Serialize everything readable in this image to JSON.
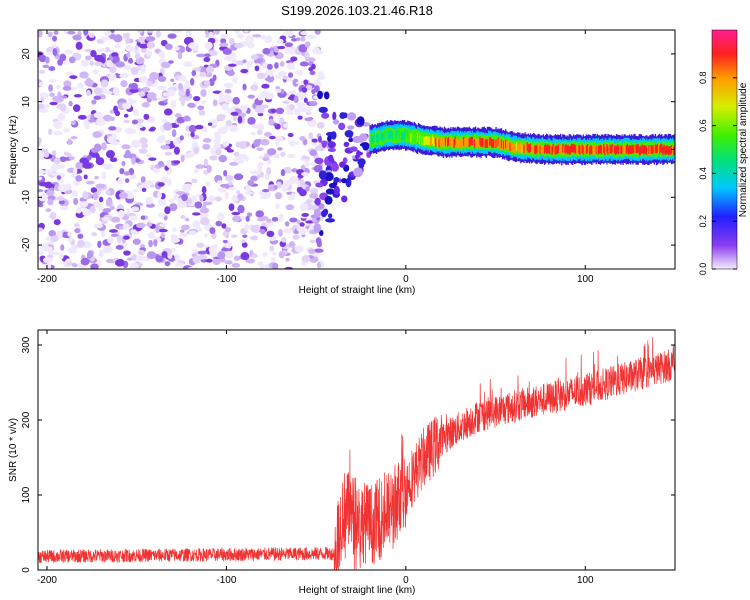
{
  "title": "S199.2026.103.21.46.R18",
  "chart_data": [
    {
      "type": "heatmap",
      "name": "spectrogram",
      "xlabel": "Height of straight line (km)",
      "ylabel": "Frequency (Hz)",
      "xlim": [
        -205,
        150
      ],
      "ylim": [
        -25,
        25
      ],
      "xticks": [
        -200,
        -100,
        0,
        100
      ],
      "yticks": [
        -20,
        -10,
        0,
        10,
        20
      ],
      "noise_region_x": [
        -205,
        -50
      ],
      "transition_x": [
        -50,
        -20
      ],
      "signal_track": [
        {
          "x": -20,
          "f": 2.0,
          "amp": 0.55
        },
        {
          "x": -10,
          "f": 3.0,
          "amp": 0.6
        },
        {
          "x": 0,
          "f": 3.0,
          "amp": 0.65
        },
        {
          "x": 10,
          "f": 2.0,
          "amp": 0.75
        },
        {
          "x": 20,
          "f": 1.5,
          "amp": 0.9
        },
        {
          "x": 50,
          "f": 1.5,
          "amp": 0.95
        },
        {
          "x": 60,
          "f": 0.5,
          "amp": 0.85
        },
        {
          "x": 80,
          "f": 0.0,
          "amp": 0.95
        },
        {
          "x": 150,
          "f": 0.0,
          "amp": 0.97
        }
      ],
      "colorbar": {
        "label": "Normalized spectral amplitude",
        "ticks": [
          "0.0",
          "0.2",
          "0.4",
          "0.6",
          "0.8"
        ],
        "range": [
          0,
          1
        ]
      }
    },
    {
      "type": "line",
      "name": "snr",
      "xlabel": "Height of straight line (km)",
      "ylabel": "SNR (10 * v/v)",
      "xlim": [
        -205,
        150
      ],
      "ylim": [
        0,
        320
      ],
      "xticks": [
        -200,
        -100,
        0,
        100
      ],
      "yticks": [
        0,
        100,
        200,
        300
      ],
      "color": "#f03232",
      "trend": [
        {
          "x": -205,
          "y": 18
        },
        {
          "x": -40,
          "y": 22
        },
        {
          "x": -35,
          "y": 80
        },
        {
          "x": -20,
          "y": 60
        },
        {
          "x": -10,
          "y": 75
        },
        {
          "x": 0,
          "y": 110
        },
        {
          "x": 10,
          "y": 150
        },
        {
          "x": 20,
          "y": 175
        },
        {
          "x": 40,
          "y": 205
        },
        {
          "x": 60,
          "y": 218
        },
        {
          "x": 100,
          "y": 240
        },
        {
          "x": 150,
          "y": 275
        }
      ]
    }
  ]
}
